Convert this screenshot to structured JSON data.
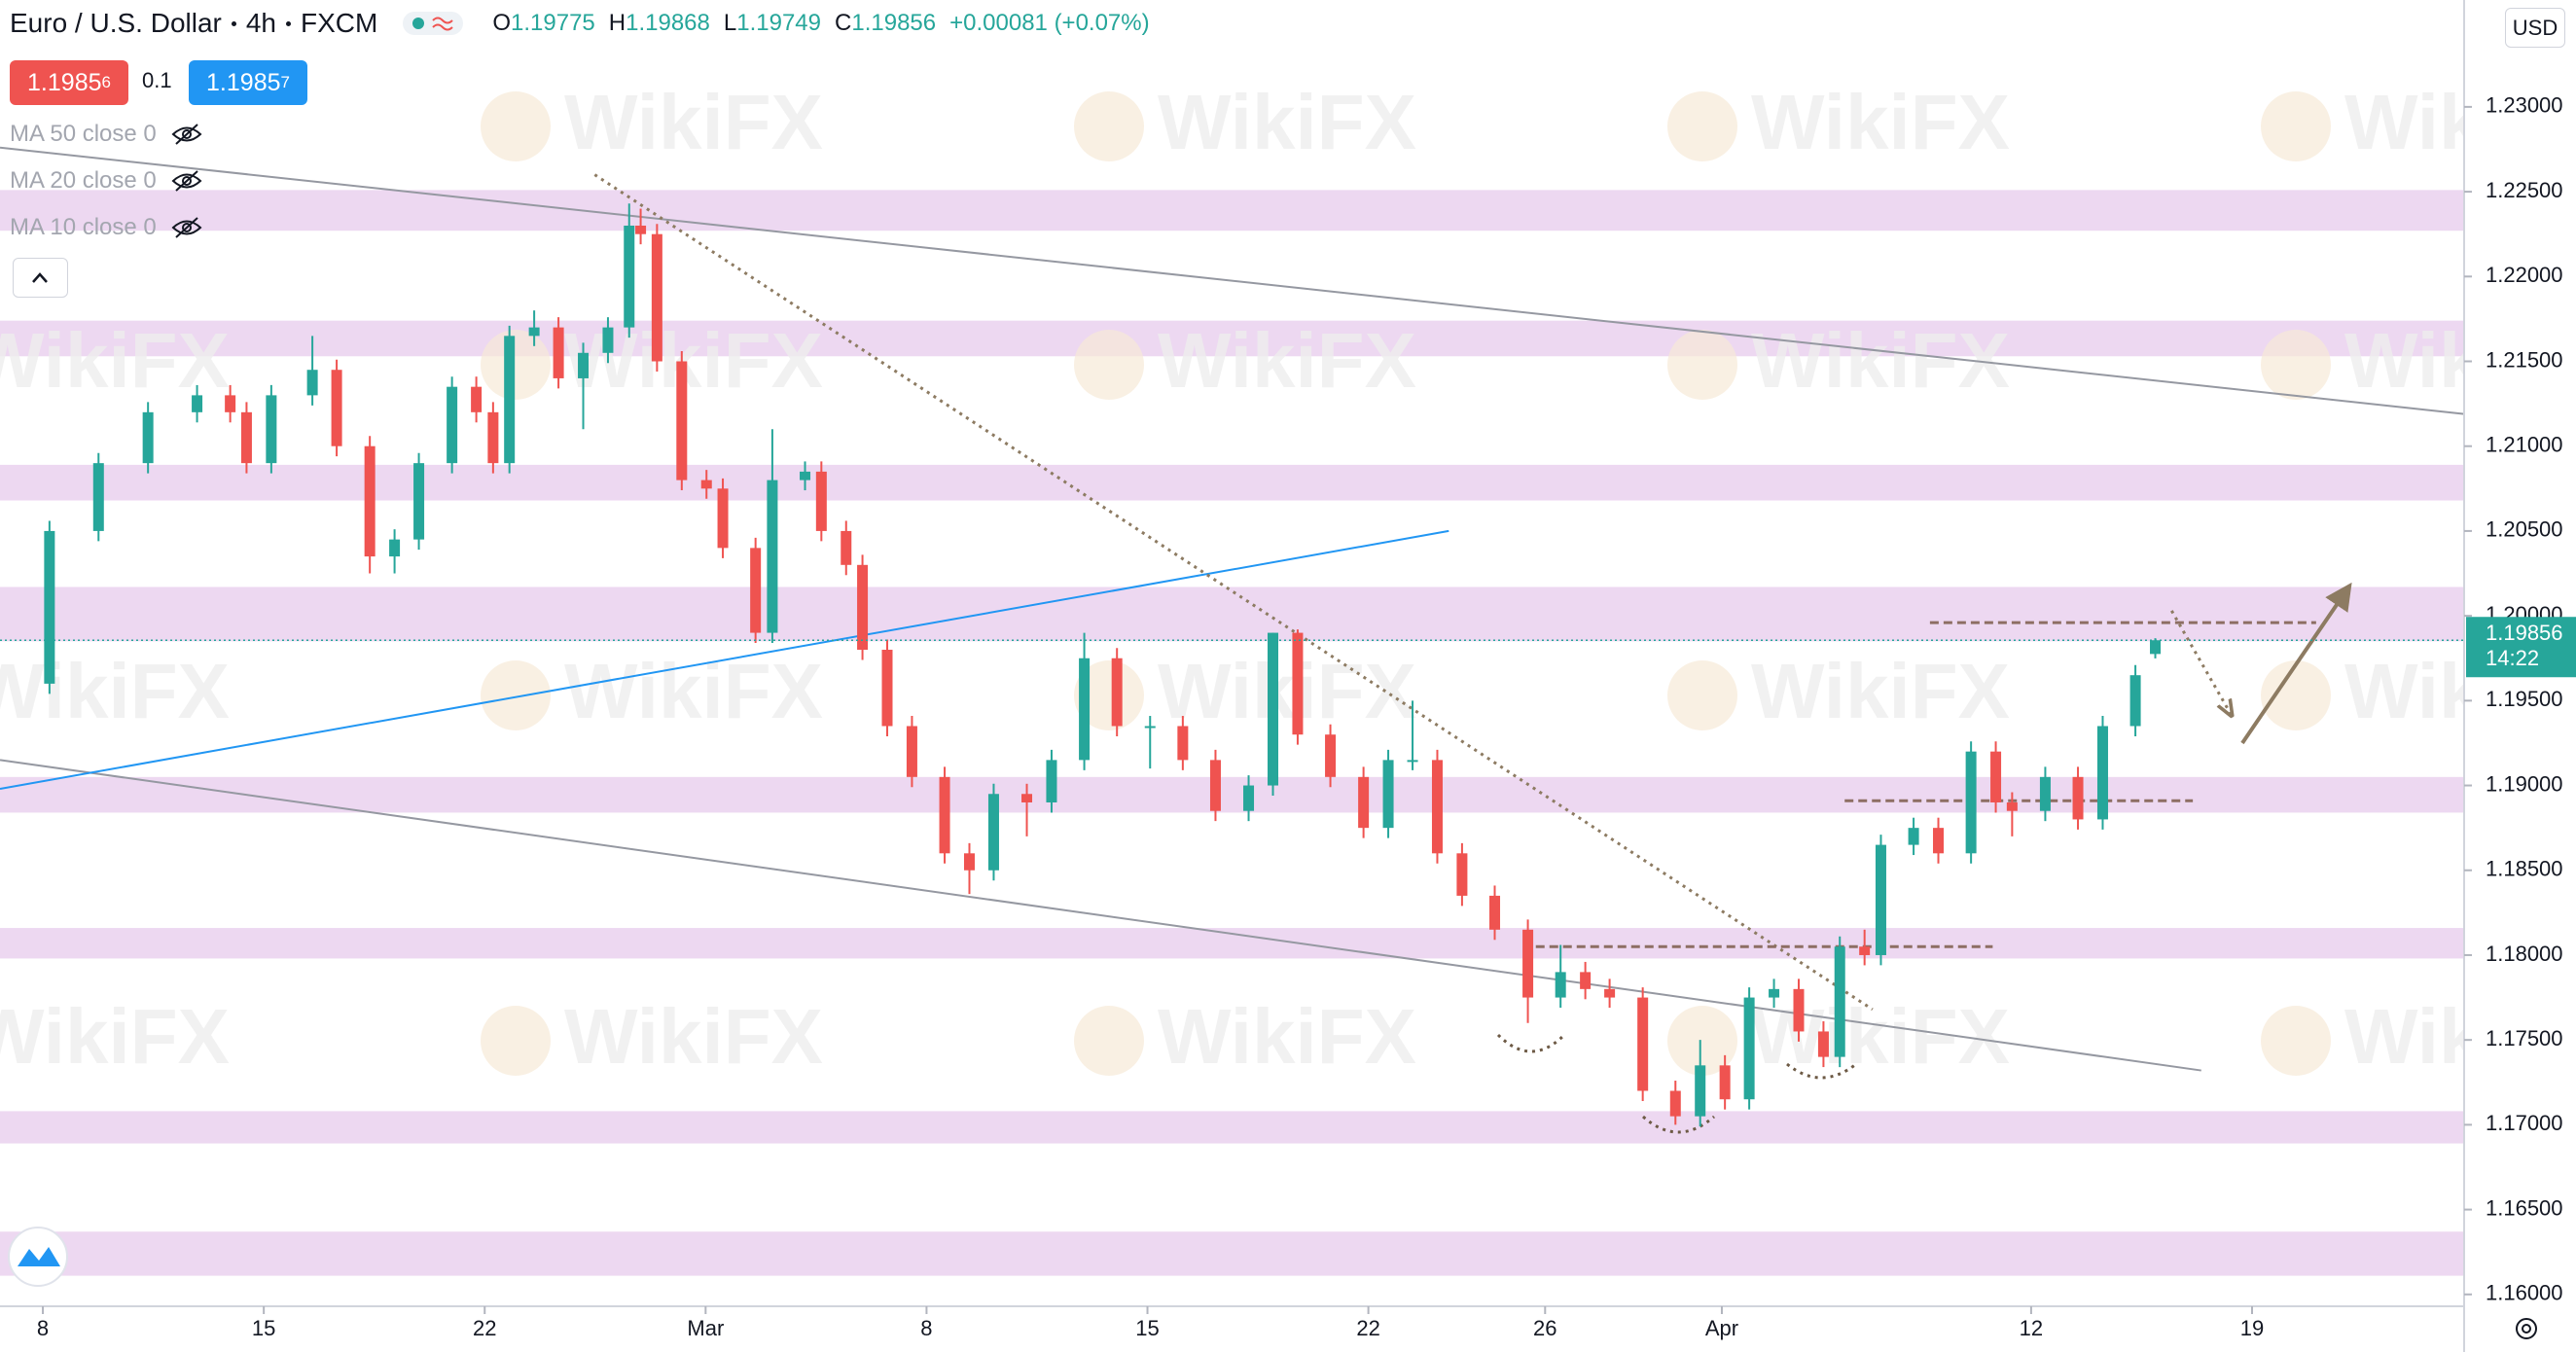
{
  "header": {
    "symbol": "Euro / U.S. Dollar",
    "interval": "4h",
    "exchange": "FXCM",
    "o_label": "O",
    "open": 1.19775,
    "h_label": "H",
    "high": 1.19868,
    "l_label": "L",
    "low": 1.19749,
    "c_label": "C",
    "close": 1.19856,
    "change": "+0.00081 (+0.07%)"
  },
  "trade": {
    "sell_main": "1.1985",
    "sell_pip": "6",
    "spread": "0.1",
    "buy_main": "1.1985",
    "buy_pip": "7"
  },
  "indicators": [
    "MA 50 close 0",
    "MA 20 close 0",
    "MA 10 close 0"
  ],
  "watermark": "WikiFX",
  "currency": "USD",
  "chart_data": {
    "type": "candlestick",
    "x": [
      0.15,
      1.26,
      2.38,
      3.49,
      4.24,
      4.61,
      5.17,
      6.1,
      6.65,
      7.4,
      7.96,
      8.51,
      9.26,
      9.81,
      10.19,
      10.56,
      11.12,
      11.67,
      12.23,
      12.79,
      13.27,
      13.53,
      13.9,
      14.46,
      15.02,
      15.39,
      16.13,
      16.51,
      17.25,
      17.62,
      18.18,
      18.55,
      19.11,
      19.67,
      20.41,
      20.97,
      21.52,
      22.27,
      22.83,
      23.57,
      24.31,
      25.06,
      25.8,
      26.54,
      27.29,
      27.84,
      28.4,
      29.14,
      29.89,
      30.45,
      31.0,
      31.56,
      32.12,
      32.86,
      33.61,
      34.35,
      34.91,
      35.46,
      36.21,
      36.95,
      37.51,
      38.07,
      38.62,
      39.18,
      39.74,
      40.3,
      40.67,
      41.23,
      41.6,
      42.34,
      42.9,
      43.64,
      44.2,
      44.57,
      45.32,
      46.06,
      46.62,
      47.36,
      47.81
    ],
    "open": [
      1.196,
      1.205,
      1.209,
      1.212,
      1.213,
      1.212,
      1.209,
      1.213,
      1.2145,
      1.21,
      1.2035,
      1.2045,
      1.209,
      1.2135,
      1.212,
      1.209,
      1.2165,
      1.217,
      1.214,
      1.2155,
      1.217,
      1.223,
      1.2225,
      1.215,
      1.208,
      1.2075,
      1.204,
      1.199,
      1.208,
      1.2085,
      1.205,
      1.203,
      1.198,
      1.1935,
      1.1905,
      1.186,
      1.185,
      1.1895,
      1.189,
      1.1915,
      1.1975,
      1.1935,
      1.1935,
      1.1915,
      1.1885,
      1.19,
      1.199,
      1.193,
      1.1905,
      1.1875,
      1.1915,
      1.1915,
      1.186,
      1.1835,
      1.1815,
      1.1775,
      1.179,
      1.178,
      1.1775,
      1.172,
      1.1705,
      1.1735,
      1.1715,
      1.1775,
      1.178,
      1.1755,
      1.174,
      1.1805,
      1.18,
      1.1865,
      1.1875,
      1.186,
      1.192,
      1.189,
      1.1885,
      1.1905,
      1.188,
      1.1935,
      1.19775
    ],
    "high": [
      1.2056,
      1.2096,
      1.2126,
      1.2136,
      1.2136,
      1.2126,
      1.2136,
      1.2165,
      1.2151,
      1.2106,
      1.2051,
      1.2096,
      1.2141,
      1.2141,
      1.2126,
      1.2171,
      1.218,
      1.2176,
      1.2161,
      1.2176,
      1.2243,
      1.224,
      1.2231,
      1.2156,
      1.2086,
      1.2081,
      1.2046,
      1.211,
      1.2091,
      1.2091,
      1.2056,
      1.2036,
      1.1986,
      1.1941,
      1.1911,
      1.1866,
      1.1901,
      1.1901,
      1.1921,
      1.199,
      1.1981,
      1.1941,
      1.1941,
      1.1921,
      1.1906,
      1.199,
      1.1992,
      1.1936,
      1.1911,
      1.1921,
      1.195,
      1.1921,
      1.1866,
      1.1841,
      1.1821,
      1.1806,
      1.1796,
      1.1786,
      1.1781,
      1.1726,
      1.175,
      1.1741,
      1.1781,
      1.1786,
      1.1786,
      1.1761,
      1.1811,
      1.1815,
      1.1871,
      1.1881,
      1.1881,
      1.1926,
      1.1926,
      1.1896,
      1.1911,
      1.1911,
      1.1941,
      1.1971,
      1.19868
    ],
    "low": [
      1.1954,
      1.2044,
      1.2084,
      1.2114,
      1.2114,
      1.2084,
      1.2084,
      1.2124,
      1.2094,
      1.2025,
      1.2025,
      1.2039,
      1.2084,
      1.2114,
      1.2084,
      1.2084,
      1.2159,
      1.2134,
      1.211,
      1.2149,
      1.2164,
      1.2219,
      1.2144,
      1.2074,
      1.2069,
      1.2034,
      1.1984,
      1.1984,
      1.2074,
      1.2044,
      1.2024,
      1.1974,
      1.1929,
      1.1899,
      1.1854,
      1.1836,
      1.1844,
      1.187,
      1.1884,
      1.1909,
      1.1929,
      1.191,
      1.1909,
      1.1879,
      1.1879,
      1.1894,
      1.1924,
      1.1899,
      1.1869,
      1.1869,
      1.1909,
      1.1854,
      1.1829,
      1.1809,
      1.176,
      1.1769,
      1.1774,
      1.1769,
      1.1714,
      1.17,
      1.1699,
      1.1709,
      1.1709,
      1.1769,
      1.1749,
      1.1734,
      1.1734,
      1.1794,
      1.1794,
      1.1859,
      1.1854,
      1.1854,
      1.1884,
      1.187,
      1.1879,
      1.1874,
      1.1874,
      1.1929,
      1.19749
    ],
    "close": [
      1.205,
      1.209,
      1.212,
      1.213,
      1.212,
      1.209,
      1.213,
      1.2145,
      1.21,
      1.2035,
      1.2045,
      1.209,
      1.2135,
      1.212,
      1.209,
      1.2165,
      1.217,
      1.214,
      1.2155,
      1.217,
      1.223,
      1.2225,
      1.215,
      1.208,
      1.2075,
      1.204,
      1.199,
      1.208,
      1.2085,
      1.205,
      1.203,
      1.198,
      1.1935,
      1.1905,
      1.186,
      1.185,
      1.1895,
      1.189,
      1.1915,
      1.1975,
      1.1935,
      1.1935,
      1.1915,
      1.1885,
      1.19,
      1.199,
      1.193,
      1.1905,
      1.1875,
      1.1915,
      1.1915,
      1.186,
      1.1835,
      1.1815,
      1.1775,
      1.179,
      1.178,
      1.1775,
      1.172,
      1.1705,
      1.1735,
      1.1715,
      1.1775,
      1.178,
      1.1755,
      1.174,
      1.1805,
      1.18,
      1.1865,
      1.1875,
      1.186,
      1.192,
      1.189,
      1.1885,
      1.1905,
      1.188,
      1.1935,
      1.1965,
      1.19856
    ],
    "up_color": "#26a69a",
    "down_color": "#ef5350",
    "xlim": [
      -0.97,
      54.8
    ],
    "ylim": [
      1.1593,
      1.2363
    ],
    "xticks": [
      {
        "value": 0,
        "label": "8"
      },
      {
        "value": 5,
        "label": "15"
      },
      {
        "value": 10,
        "label": "22"
      },
      {
        "value": 15,
        "label": "Mar"
      },
      {
        "value": 20,
        "label": "8"
      },
      {
        "value": 25,
        "label": "15"
      },
      {
        "value": 30,
        "label": "22"
      },
      {
        "value": 34,
        "label": "26"
      },
      {
        "value": 38,
        "label": "Apr"
      },
      {
        "value": 45,
        "label": "12"
      },
      {
        "value": 50,
        "label": "19"
      }
    ],
    "yticks": [
      {
        "value": 1.16,
        "label": "1.16000"
      },
      {
        "value": 1.165,
        "label": "1.16500"
      },
      {
        "value": 1.17,
        "label": "1.17000"
      },
      {
        "value": 1.175,
        "label": "1.17500"
      },
      {
        "value": 1.18,
        "label": "1.18000"
      },
      {
        "value": 1.185,
        "label": "1.18500"
      },
      {
        "value": 1.19,
        "label": "1.19000"
      },
      {
        "value": 1.195,
        "label": "1.19500"
      },
      {
        "value": 1.2,
        "label": "1.20000"
      },
      {
        "value": 1.205,
        "label": "1.20500"
      },
      {
        "value": 1.21,
        "label": "1.21000"
      },
      {
        "value": 1.215,
        "label": "1.21500"
      },
      {
        "value": 1.22,
        "label": "1.22000"
      },
      {
        "value": 1.225,
        "label": "1.22500"
      },
      {
        "value": 1.23,
        "label": "1.23000"
      }
    ],
    "zone_color": "#e1bee7",
    "zones": [
      [
        1.2227,
        1.2251
      ],
      [
        1.2153,
        1.2174
      ],
      [
        1.2068,
        1.2089
      ],
      [
        1.1985,
        1.2017
      ],
      [
        1.1884,
        1.1905
      ],
      [
        1.1798,
        1.1816
      ],
      [
        1.1689,
        1.1708
      ],
      [
        1.1611,
        1.1637
      ]
    ],
    "lines": [
      {
        "x": [
          -0.97,
          54.8
        ],
        "y": [
          1.2276,
          1.2119
        ],
        "color": "#9598a1",
        "style": "solid"
      },
      {
        "x": [
          -0.97,
          48.85
        ],
        "y": [
          1.1915,
          1.1732
        ],
        "color": "#9598a1",
        "style": "solid"
      },
      {
        "x": [
          -0.97,
          31.82
        ],
        "y": [
          1.1898,
          1.205
        ],
        "color": "#2196f3",
        "style": "solid"
      },
      {
        "x": [
          12.49,
          41.41
        ],
        "y": [
          1.226,
          1.1768
        ],
        "color": "#8d7b62",
        "style": "dotted"
      },
      {
        "x": [
          42.71,
          51.45
        ],
        "y": [
          1.1996,
          1.1996
        ],
        "color": "#8d6e63",
        "style": "dashed"
      },
      {
        "x": [
          40.78,
          48.66
        ],
        "y": [
          1.1891,
          1.1891
        ],
        "color": "#8d6e63",
        "style": "dashed"
      },
      {
        "x": [
          33.79,
          44.13
        ],
        "y": [
          1.1805,
          1.1805
        ],
        "color": "#8d6e63",
        "style": "dashed"
      },
      {
        "x": [
          48.18,
          49.52
        ],
        "y": [
          1.2003,
          1.1942
        ],
        "color": "#8d7b62",
        "style": "dotted-arrow"
      },
      {
        "x": [
          49.78,
          52.19
        ],
        "y": [
          1.1925,
          1.2017
        ],
        "color": "#8d7b62",
        "style": "solid-arrow"
      }
    ],
    "last_price": {
      "value": 1.19856,
      "countdown": "14:22"
    }
  }
}
